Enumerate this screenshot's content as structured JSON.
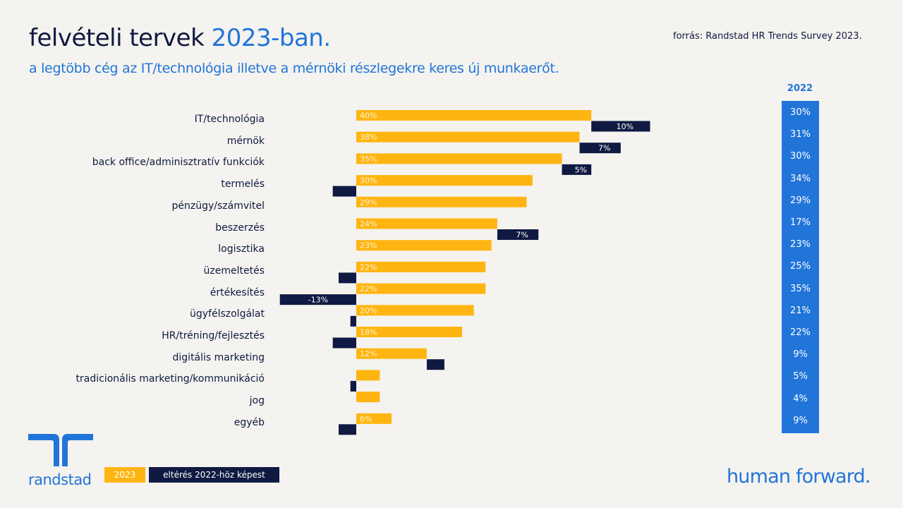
{
  "header": {
    "title_main": "felvételi tervek ",
    "title_accent": "2023-ban.",
    "subtitle": "a legtöbb cég az IT/technológia illetve a mérnöki részlegekre keres új munkaerőt.",
    "source": "forrás: Randstad HR Trends Survey 2023."
  },
  "colors": {
    "bar_2023": "#ffb511",
    "bar_delta": "#0f1941",
    "column_2022": "#2175d9",
    "brand_blue": "#2175d9",
    "text_dark": "#0f1941",
    "background": "#f4f3ef"
  },
  "column_2022": {
    "header": "2022",
    "values": [
      "30%",
      "31%",
      "30%",
      "34%",
      "29%",
      "17%",
      "23%",
      "25%",
      "35%",
      "21%",
      "22%",
      "9%",
      "5%",
      "4%",
      "9%"
    ]
  },
  "legend": {
    "item_2023": "2023",
    "item_delta": "eltérés 2022-höz képest"
  },
  "footer": {
    "logo_text": "randstad",
    "logo_icon": "randstad-logo-icon",
    "tagline": "human forward."
  },
  "chart_data": {
    "type": "bar",
    "orientation": "horizontal",
    "title": "felvételi tervek 2023-ban.",
    "subtitle": "a legtöbb cég az IT/technológia illetve a mérnöki részlegekre keres új munkaerőt.",
    "xlabel": "",
    "ylabel": "",
    "unit": "%",
    "grid": false,
    "legend_position": "bottom-left",
    "categories": [
      "IT/technológia",
      "mérnök",
      "back office/adminisztratív funkciók",
      "termelés",
      "pénzügy/számvitel",
      "beszerzés",
      "logisztika",
      "üzemeltetés",
      "értékesítés",
      "ügyfélszolgálat",
      "HR/tréning/fejlesztés",
      "digitális marketing",
      "tradicionális marketing/kommunikáció",
      "jog",
      "egyéb"
    ],
    "series": [
      {
        "name": "2023",
        "values": [
          40,
          38,
          35,
          30,
          29,
          24,
          23,
          22,
          22,
          20,
          18,
          12,
          4,
          4,
          6
        ],
        "labels": [
          "40%",
          "38%",
          "35%",
          "30%",
          "29%",
          "24%",
          "23%",
          "22%",
          "22%",
          "20%",
          "18%",
          "12%",
          "",
          "",
          "6%"
        ]
      },
      {
        "name": "eltérés 2022-höz képest",
        "values": [
          10,
          7,
          5,
          -4,
          0,
          7,
          0,
          -3,
          -13,
          -1,
          -4,
          3,
          -1,
          0,
          -3
        ],
        "labels": [
          "10%",
          "7%",
          "5%",
          "",
          "",
          "7%",
          "",
          "",
          "-13%",
          "",
          "",
          "",
          "",
          "",
          ""
        ]
      },
      {
        "name": "2022",
        "values": [
          30,
          31,
          30,
          34,
          29,
          17,
          23,
          25,
          35,
          21,
          22,
          9,
          5,
          4,
          9
        ]
      }
    ],
    "xlim": [
      -15,
      50
    ]
  }
}
